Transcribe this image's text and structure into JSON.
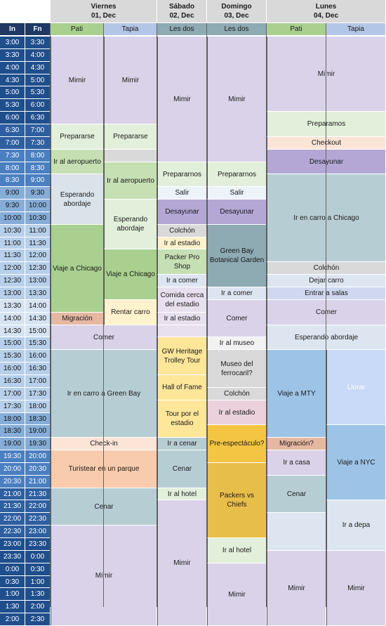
{
  "header": {
    "days": [
      {
        "name": "Viernes",
        "date": "01, Dec"
      },
      {
        "name": "Sábado",
        "date": "02, Dec"
      },
      {
        "name": "Domingo",
        "date": "03, Dec"
      },
      {
        "name": "Lunes",
        "date": "04, Dec"
      }
    ],
    "time_in": "In",
    "time_fn": "Fn",
    "people": [
      "Pati",
      "Tapia",
      "Les dos",
      "Les dos",
      "Pati",
      "Tapia"
    ]
  },
  "colors": {
    "time_dark": "#1f4e8c",
    "time_light": "#9dc3e6",
    "lavender": "#d9d2e9",
    "green": "#a9d08e",
    "light_green": "#e2efda",
    "blue_gray": "#b4c6e7",
    "peach": "#f8cbad",
    "yellow": "#fff2cc",
    "gold": "#f4c542"
  },
  "times": [
    [
      "3:00",
      "3:30"
    ],
    [
      "3:30",
      "4:00"
    ],
    [
      "4:00",
      "4:30"
    ],
    [
      "4:30",
      "5:00"
    ],
    [
      "5:00",
      "5:30"
    ],
    [
      "5:30",
      "6:00"
    ],
    [
      "6:00",
      "6:30"
    ],
    [
      "6:30",
      "7:00"
    ],
    [
      "7:00",
      "7:30"
    ],
    [
      "7:30",
      "8:00"
    ],
    [
      "8:00",
      "8:30"
    ],
    [
      "8:30",
      "9:00"
    ],
    [
      "9:00",
      "9:30"
    ],
    [
      "9:30",
      "10:00"
    ],
    [
      "10:00",
      "10:30"
    ],
    [
      "10:30",
      "11:00"
    ],
    [
      "11:00",
      "11:30"
    ],
    [
      "11:30",
      "12:00"
    ],
    [
      "12:00",
      "12:30"
    ],
    [
      "12:30",
      "13:00"
    ],
    [
      "13:00",
      "13:30"
    ],
    [
      "13:30",
      "14:00"
    ],
    [
      "14:00",
      "14:30"
    ],
    [
      "14:30",
      "15:00"
    ],
    [
      "15:00",
      "15:30"
    ],
    [
      "15:30",
      "16:00"
    ],
    [
      "16:00",
      "16:30"
    ],
    [
      "16:30",
      "17:00"
    ],
    [
      "17:00",
      "17:30"
    ],
    [
      "17:30",
      "18:00"
    ],
    [
      "18:00",
      "18:30"
    ],
    [
      "18:30",
      "19:00"
    ],
    [
      "19:00",
      "19:30"
    ],
    [
      "19:30",
      "20:00"
    ],
    [
      "20:00",
      "20:30"
    ],
    [
      "20:30",
      "21:00"
    ],
    [
      "21:00",
      "21:30"
    ],
    [
      "21:30",
      "22:00"
    ],
    [
      "22:00",
      "22:30"
    ],
    [
      "22:30",
      "23:00"
    ],
    [
      "23:00",
      "23:30"
    ],
    [
      "23:30",
      "0:00"
    ],
    [
      "0:00",
      "0:30"
    ],
    [
      "0:30",
      "1:00"
    ],
    [
      "1:00",
      "1:30"
    ],
    [
      "1:30",
      "2:00"
    ],
    [
      "2:00",
      "2:30"
    ]
  ],
  "events": {
    "viernes_pati": [
      {
        "label": "Mimir",
        "start": 0,
        "end": 7,
        "color": "#d9d2e9"
      },
      {
        "label": "Prepararse",
        "start": 7,
        "end": 9,
        "color": "#e2efda"
      },
      {
        "label": "Ir al aeropuerto",
        "start": 9,
        "end": 11,
        "color": "#c6e0b4"
      },
      {
        "label": "Esperando abordaje",
        "start": 11,
        "end": 15,
        "color": "#dae3ea"
      },
      {
        "label": "Viaje a Chicago",
        "start": 15,
        "end": 22,
        "color": "#a9d08e"
      },
      {
        "label": "Migración",
        "start": 22,
        "end": 23,
        "color": "#e6b8a2"
      }
    ],
    "viernes_tapia": [
      {
        "label": "Mimir",
        "start": 0,
        "end": 7,
        "color": "#d9d2e9"
      },
      {
        "label": "Prepararse",
        "start": 7,
        "end": 9,
        "color": "#e2efda"
      },
      {
        "label": "",
        "start": 9,
        "end": 10,
        "color": "#d9d9d9"
      },
      {
        "label": "Ir al aeropuerto",
        "start": 10,
        "end": 13,
        "color": "#c6e0b4"
      },
      {
        "label": "Esperando abordaje",
        "start": 13,
        "end": 17,
        "color": "#e2efda"
      },
      {
        "label": "Viaje a Chicago",
        "start": 17,
        "end": 21,
        "color": "#a9d08e"
      },
      {
        "label": "Rentar carro",
        "start": 21,
        "end": 23,
        "color": "#fff2cc"
      }
    ],
    "viernes_both": [
      {
        "label": "Comer",
        "start": 23,
        "end": 25,
        "color": "#d9d2e9"
      },
      {
        "label": "Ir en carro a Green Bay",
        "start": 25,
        "end": 32,
        "color": "#b7cdd4"
      },
      {
        "label": "Check-in",
        "start": 32,
        "end": 33,
        "color": "#fce4d6"
      },
      {
        "label": "Turistear en un parque",
        "start": 33,
        "end": 36,
        "color": "#f8cbad"
      },
      {
        "label": "Cenar",
        "start": 36,
        "end": 39,
        "color": "#b7cdd4"
      },
      {
        "label": "Mimir",
        "start": 39,
        "end": 47,
        "color": "#d9d2e9"
      }
    ],
    "sabado": [
      {
        "label": "Mimir",
        "start": 0,
        "end": 10,
        "color": "#d9d2e9"
      },
      {
        "label": "Prepararnos",
        "start": 10,
        "end": 12,
        "color": "#e2efda"
      },
      {
        "label": "Salir",
        "start": 12,
        "end": 13,
        "color": "#ecf3fa"
      },
      {
        "label": "Desayunar",
        "start": 13,
        "end": 15,
        "color": "#b4a7d6"
      },
      {
        "label": "Colchón",
        "start": 15,
        "end": 16,
        "color": "#d9d9d9"
      },
      {
        "label": "Ir al estadio",
        "start": 16,
        "end": 17,
        "color": "#fff2cc"
      },
      {
        "label": "Packer Pro Shop",
        "start": 17,
        "end": 19,
        "color": "#c6e0b4"
      },
      {
        "label": "Ir a comer",
        "start": 19,
        "end": 20,
        "color": "#dde6f0"
      },
      {
        "label": "Comida cerca del estadio",
        "start": 20,
        "end": 22,
        "color": "#e8e0ef"
      },
      {
        "label": "Ir al estadio",
        "start": 22,
        "end": 23,
        "color": "#e8e0ef"
      },
      {
        "label": "GW Heritage Trolley Tour",
        "start": 24,
        "end": 27,
        "color": "#ffe699"
      },
      {
        "label": "Hall of Fame",
        "start": 27,
        "end": 29,
        "color": "#ffe699"
      },
      {
        "label": "Tour por el estadio",
        "start": 29,
        "end": 32,
        "color": "#ffe699"
      },
      {
        "label": "Ir a cenar",
        "start": 32,
        "end": 33,
        "color": "#b7cdd4"
      },
      {
        "label": "Cenar",
        "start": 33,
        "end": 36,
        "color": "#b7cdd4"
      },
      {
        "label": "Ir al hotel",
        "start": 36,
        "end": 37,
        "color": "#e2efda"
      },
      {
        "label": "Mimir",
        "start": 37,
        "end": 47,
        "color": "#d9d2e9"
      }
    ],
    "domingo": [
      {
        "label": "Mimir",
        "start": 0,
        "end": 10,
        "color": "#d9d2e9"
      },
      {
        "label": "Prepararnos",
        "start": 10,
        "end": 12,
        "color": "#e2efda"
      },
      {
        "label": "Salir",
        "start": 12,
        "end": 13,
        "color": "#ecf3fa"
      },
      {
        "label": "Desayunar",
        "start": 13,
        "end": 15,
        "color": "#b4a7d6"
      },
      {
        "label": "Green Bay Botanical Garden",
        "start": 15,
        "end": 20,
        "color": "#8eaab3"
      },
      {
        "label": "Ir a comer",
        "start": 20,
        "end": 21,
        "color": "#dde6f0"
      },
      {
        "label": "Comer",
        "start": 21,
        "end": 24,
        "color": "#d9d2e9"
      },
      {
        "label": "Ir al museo",
        "start": 24,
        "end": 25,
        "color": "#f2f2f2"
      },
      {
        "label": "Museo del ferrocaril?",
        "start": 25,
        "end": 28,
        "color": "#d9d9d9"
      },
      {
        "label": "Colchón",
        "start": 28,
        "end": 29,
        "color": "#d9d9d9"
      },
      {
        "label": "Ir al estadio",
        "start": 29,
        "end": 31,
        "color": "#ead1dc"
      },
      {
        "label": "Pre-espectáculo?",
        "start": 31,
        "end": 34,
        "color": "#f4c542"
      },
      {
        "label": "Packers vs Chiefs",
        "start": 34,
        "end": 40,
        "color": "#e8be4a"
      },
      {
        "label": "Ir al hotel",
        "start": 40,
        "end": 42,
        "color": "#e2efda"
      },
      {
        "label": "Mimir",
        "start": 42,
        "end": 47,
        "color": "#d9d2e9"
      }
    ],
    "lunes_both": [
      {
        "label": "Mimir",
        "start": 0,
        "end": 6,
        "color": "#d9d2e9"
      },
      {
        "label": "Preparamos",
        "start": 6,
        "end": 8,
        "color": "#e2efda"
      },
      {
        "label": "Checkout",
        "start": 8,
        "end": 9,
        "color": "#fce4d6"
      },
      {
        "label": "Desayunar",
        "start": 9,
        "end": 11,
        "color": "#b4a7d6"
      },
      {
        "label": "Ir en carro a Chicago",
        "start": 11,
        "end": 18,
        "color": "#b7cdd4"
      },
      {
        "label": "Colchón",
        "start": 18,
        "end": 19,
        "color": "#d9d9d9"
      },
      {
        "label": "Dejar carro",
        "start": 19,
        "end": 20,
        "color": "#dde6f0"
      },
      {
        "label": "Entrar a salas",
        "start": 20,
        "end": 21,
        "color": "#d0d8f0"
      },
      {
        "label": "Comer",
        "start": 21,
        "end": 23,
        "color": "#d9d2e9"
      },
      {
        "label": "Esperando abordaje",
        "start": 23,
        "end": 25,
        "color": "#dde6f0"
      }
    ],
    "lunes_pati": [
      {
        "label": "Viaje a MTY",
        "start": 25,
        "end": 32,
        "color": "#9dc3e6"
      },
      {
        "label": "Migración?",
        "start": 32,
        "end": 33,
        "color": "#e6b8a2"
      },
      {
        "label": "Ir a casa",
        "start": 33,
        "end": 35,
        "color": "#d9d2e9"
      },
      {
        "label": "Cenar",
        "start": 35,
        "end": 38,
        "color": "#b7cdd4"
      },
      {
        "label": "",
        "start": 38,
        "end": 41,
        "color": "#dde6f0"
      },
      {
        "label": "Mimir",
        "start": 41,
        "end": 47,
        "color": "#d9d2e9"
      }
    ],
    "lunes_tapia": [
      {
        "label": "Llorar",
        "start": 25,
        "end": 31,
        "color": "#c9daf8"
      },
      {
        "label": "Viaje a NYC",
        "start": 31,
        "end": 37,
        "color": "#9dc3e6"
      },
      {
        "label": "Ir a depa",
        "start": 37,
        "end": 41,
        "color": "#dde6f0"
      },
      {
        "label": "Mimir",
        "start": 41,
        "end": 47,
        "color": "#d9d2e9"
      }
    ]
  }
}
